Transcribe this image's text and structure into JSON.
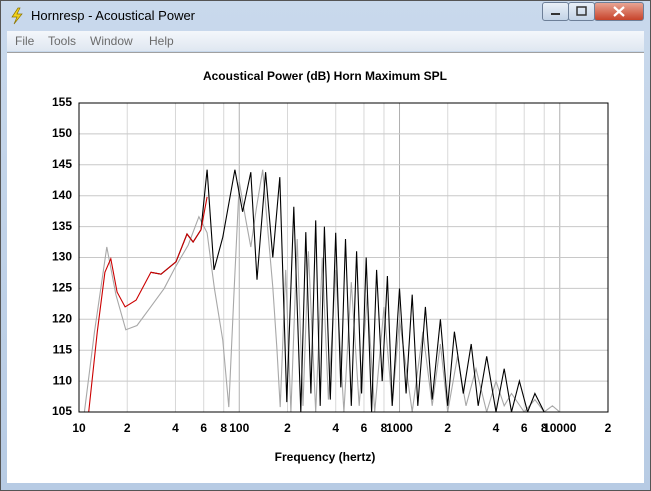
{
  "window": {
    "title": "Hornresp - Acoustical Power",
    "menu": [
      "File",
      "Tools",
      "Window",
      "Help"
    ]
  },
  "chart_data": {
    "type": "line",
    "title": "Acoustical Power (dB)   Horn   Maximum SPL",
    "x_label": "Frequency (hertz)",
    "xlog": true,
    "grid": true,
    "xlim": [
      10,
      20000
    ],
    "ylim": [
      105,
      155
    ],
    "xticks": [
      10,
      {
        "value": 20,
        "label": "2"
      },
      {
        "value": 40,
        "label": "4"
      },
      {
        "value": 60,
        "label": "6"
      },
      {
        "value": 80,
        "label": "8"
      },
      100,
      {
        "value": 200,
        "label": "2"
      },
      {
        "value": 400,
        "label": "4"
      },
      {
        "value": 600,
        "label": "6"
      },
      {
        "value": 800,
        "label": "8"
      },
      1000,
      {
        "value": 2000,
        "label": "2"
      },
      {
        "value": 4000,
        "label": "4"
      },
      {
        "value": 6000,
        "label": "6"
      },
      {
        "value": 8000,
        "label": "8"
      },
      10000,
      {
        "value": 20000,
        "label": "2"
      }
    ],
    "yticks": [
      105,
      110,
      115,
      120,
      125,
      130,
      135,
      140,
      145,
      150,
      155
    ],
    "series": [
      {
        "color": "#a8a8a8",
        "x": [
          10.8,
          12.5,
          14.9,
          17,
          19.6,
          23,
          28,
          34,
          40,
          48,
          56,
          63,
          70,
          79,
          86,
          93,
          100,
          110,
          118,
          128,
          140,
          150,
          162,
          172,
          180,
          195,
          210,
          230,
          250,
          270,
          300,
          330,
          360,
          400,
          450,
          500,
          560,
          630,
          700,
          800,
          900,
          1000,
          1200,
          1400,
          1600,
          1800,
          2000,
          2300,
          2600,
          3000,
          3500,
          4000,
          4500,
          5000,
          6000,
          7000,
          8000,
          9000,
          10000
        ],
        "values": [
          105,
          118,
          131.7,
          124,
          118.3,
          119,
          122,
          125,
          128.5,
          132,
          136.6,
          134,
          125,
          116.6,
          105.8,
          125,
          142.2,
          136,
          131.7,
          138,
          144.2,
          135,
          125.2,
          115,
          105.8,
          128,
          105,
          133,
          106,
          131,
          105,
          130,
          107,
          128,
          105,
          126,
          106,
          124,
          105,
          122,
          106,
          120,
          105,
          118,
          106,
          116,
          105,
          114,
          106,
          112,
          105,
          110,
          106,
          108,
          105,
          107,
          105,
          106,
          105
        ]
      },
      {
        "color": "#000000",
        "x": [
          28.1,
          32.5,
          40.3,
          47.2,
          51.5,
          57.7,
          63,
          69.6,
          79,
          94,
          105,
          118,
          129,
          146,
          162,
          179,
          198,
          219,
          242,
          260,
          280,
          300,
          320,
          340,
          370,
          400,
          430,
          460,
          500,
          540,
          580,
          620,
          670,
          720,
          780,
          840,
          900,
          1000,
          1100,
          1200,
          1300,
          1450,
          1600,
          1800,
          2000,
          2200,
          2500,
          2800,
          3100,
          3500,
          4000,
          4500,
          5000,
          5600,
          6300,
          7000,
          8000
        ],
        "values": [
          127.6,
          127.3,
          129.3,
          133.8,
          132.5,
          134.5,
          144.2,
          128,
          133.3,
          144.2,
          137.4,
          143.8,
          126.4,
          143.8,
          130,
          143,
          106.6,
          138.2,
          105,
          134.1,
          108,
          136,
          106,
          135,
          107,
          134,
          109,
          133,
          106,
          131,
          108,
          130,
          105,
          128,
          110,
          127,
          106,
          125,
          108,
          124,
          106,
          122,
          107,
          120,
          106,
          118,
          108,
          116,
          106,
          114,
          105,
          112,
          105,
          110,
          105,
          108,
          105
        ]
      },
      {
        "color": "#cc0000",
        "x": [
          11.5,
          13,
          14.5,
          15.8,
          17.3,
          19.4,
          22.7,
          28.1,
          32.5,
          40.3,
          47.2,
          51.5,
          57.7,
          63
        ],
        "values": [
          105,
          118,
          127.6,
          129.8,
          124.4,
          122,
          123.1,
          127.6,
          127.3,
          129.3,
          133.8,
          132.5,
          134.5,
          139.8
        ]
      }
    ]
  }
}
